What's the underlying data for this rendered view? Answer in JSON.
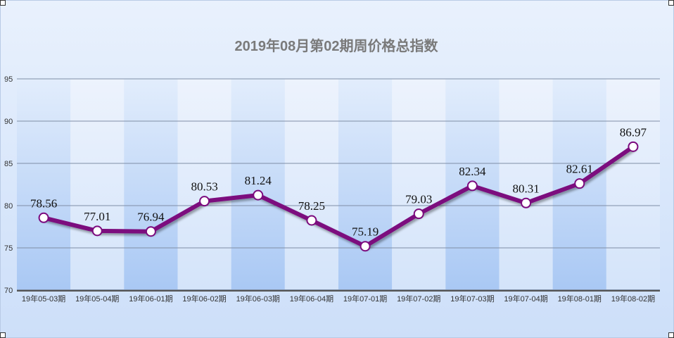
{
  "chart_data": {
    "type": "line",
    "title": "2019年08月第02期周价格总指数",
    "xlabel": "",
    "ylabel": "",
    "ylim": [
      70,
      95
    ],
    "yticks": [
      70,
      75,
      80,
      85,
      90,
      95
    ],
    "grid": true,
    "categories": [
      "19年05-03期",
      "19年05-04期",
      "19年06-01期",
      "19年06-02期",
      "19年06-03期",
      "19年06-04期",
      "19年07-01期",
      "19年07-02期",
      "19年07-03期",
      "19年07-04期",
      "19年08-01期",
      "19年08-02期"
    ],
    "series": [
      {
        "values": [
          78.56,
          77.01,
          76.94,
          80.53,
          81.24,
          78.25,
          75.19,
          79.03,
          82.34,
          80.31,
          82.61,
          86.97
        ]
      }
    ],
    "data_labels": [
      "78.56",
      "77.01",
      "76.94",
      "80.53",
      "81.24",
      "78.25",
      "75.19",
      "79.03",
      "82.34",
      "80.31",
      "82.61",
      "86.97"
    ],
    "colors": {
      "line": "#7b0a7e",
      "marker_fill": "#ffffff",
      "gridline": "#7f8ea6",
      "band_dark": "#b7d1f6",
      "band_light": "#dce9fb"
    }
  }
}
